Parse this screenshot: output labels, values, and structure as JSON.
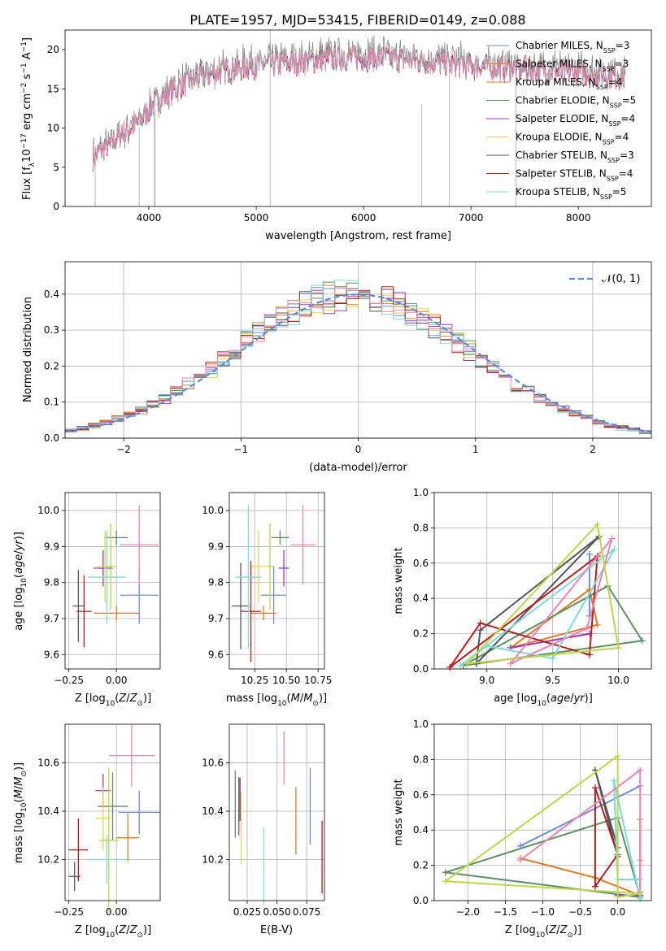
{
  "figure_title": "PLATE=1957, MJD=53415, FIBERID=0149, z=0.088",
  "model_colors": [
    "#6f8fd8",
    "#e07a24",
    "#5e8f62",
    "#9c37b8",
    "#e3d64a",
    "#555555",
    "#b31b1b",
    "#7fdad8",
    "#e884b8",
    "#bcd64a"
  ],
  "chart_data": [
    {
      "type": "line",
      "panel": "spectrum",
      "xlabel": "wavelength [Angstrom, rest frame]",
      "ylabel": "Flux [fλ10⁻¹⁷ erg cm⁻² s⁻¹ A⁻¹]",
      "xlim": [
        3220,
        8680
      ],
      "ylim": [
        0,
        22.5
      ],
      "xticks": [
        "4000",
        "5000",
        "6000",
        "7000",
        "8000"
      ],
      "yticks": [
        "0",
        "5",
        "10",
        "15",
        "20"
      ],
      "grid": false,
      "legend_position": "right",
      "x_range": [
        3480,
        8440
      ],
      "continuum_knots": {
        "x": [
          3480,
          3700,
          3900,
          4050,
          4300,
          4600,
          5000,
          5400,
          5800,
          6200,
          6600,
          7000,
          7500,
          8000,
          8440
        ],
        "y": [
          6.5,
          9,
          11,
          13.5,
          16,
          17.5,
          18.5,
          19,
          19.5,
          19.5,
          19,
          18.5,
          18,
          17.5,
          17
        ]
      },
      "series": [
        {
          "name": "Chabrier MILES, N_SSP=3",
          "color": "#6f8fd8"
        },
        {
          "name": "Salpeter MILES, N_SSP=3",
          "color": "#e07a24"
        },
        {
          "name": "Kroupa MILES, N_SSP=4",
          "color": "#e07a24"
        },
        {
          "name": "Chabrier ELODIE, N_SSP=5",
          "color": "#5e8f62"
        },
        {
          "name": "Salpeter ELODIE, N_SSP=4",
          "color": "#9c37b8"
        },
        {
          "name": "Kroupa ELODIE, N_SSP=4",
          "color": "#e3d64a"
        },
        {
          "name": "Chabrier STELIB, N_SSP=3",
          "color": "#555555"
        },
        {
          "name": "Salpeter STELIB, N_SSP=4",
          "color": "#b31b1b"
        },
        {
          "name": "Kroupa STELIB, N_SSP=5",
          "color": "#7fdad8"
        }
      ],
      "data_series": {
        "name": "",
        "color": "#808080"
      },
      "legend_prefix": [
        "Chabrier MILES, N",
        "Salpeter MILES, N",
        "Kroupa MILES, N",
        "Chabrier ELODIE, N",
        "Salpeter ELODIE, N",
        "Kroupa ELODIE, N",
        "Chabrier STELIB, N",
        "Salpeter STELIB, N",
        "Kroupa STELIB, N"
      ],
      "legend_sub": "SSP",
      "legend_suffix": [
        "=3",
        "=3",
        "=4",
        "=5",
        "=4",
        "=4",
        "=3",
        "=4",
        "=5"
      ]
    },
    {
      "type": "line",
      "panel": "residual_histogram",
      "xlabel": "(data-model)/error",
      "ylabel": "Normed distribution",
      "xlim": [
        -2.5,
        2.5
      ],
      "ylim": [
        0,
        0.49
      ],
      "xticks": [
        "−2",
        "−1",
        "0",
        "1",
        "2"
      ],
      "yticks": [
        "0.0",
        "0.1",
        "0.2",
        "0.3",
        "0.4"
      ],
      "grid": true,
      "bin_width": 0.1,
      "reference_curve": {
        "name": "𝒩(0, 1)",
        "color": "#5b8bd6",
        "style": "dashed",
        "mean": 0,
        "sigma": 1
      },
      "series_colors": [
        "#6f8fd8",
        "#e07a24",
        "#5e8f62",
        "#9c37b8",
        "#e3d64a",
        "#555555",
        "#b31b1b",
        "#7fdad8",
        "#e884b8"
      ]
    },
    {
      "type": "scatter",
      "panel": "age_vs_Z",
      "xlabel": "Z [log10(Z/Z⊙)]",
      "ylabel": "age  [log10(age/yr)]",
      "xlim": [
        -0.27,
        0.23
      ],
      "ylim": [
        9.56,
        10.05
      ],
      "xticks": [
        "−0.25",
        "0.00"
      ],
      "yticks": [
        "9.6",
        "9.7",
        "9.8",
        "9.9",
        "10.0"
      ],
      "grid": true,
      "points": [
        {
          "x": 0.12,
          "y": 9.765,
          "xerr": 0.1,
          "yerr": 0.08,
          "color": "#6f8fd8"
        },
        {
          "x": 0.0,
          "y": 9.715,
          "xerr": 0.12,
          "yerr": 0.02,
          "color": "#e07a24"
        },
        {
          "x": 0.0,
          "y": 9.925,
          "xerr": 0.06,
          "yerr": 0.02,
          "color": "#5e8f62"
        },
        {
          "x": -0.07,
          "y": 9.84,
          "xerr": 0.05,
          "yerr": 0.05,
          "color": "#9c37b8"
        },
        {
          "x": -0.06,
          "y": 9.845,
          "xerr": 0.04,
          "yerr": 0.1,
          "color": "#e3d64a"
        },
        {
          "x": -0.2,
          "y": 9.735,
          "xerr": 0.03,
          "yerr": 0.1,
          "color": "#555555"
        },
        {
          "x": -0.17,
          "y": 9.72,
          "xerr": 0.04,
          "yerr": 0.1,
          "color": "#b31b1b"
        },
        {
          "x": -0.05,
          "y": 9.815,
          "xerr": 0.1,
          "yerr": 0.13,
          "color": "#7fdad8"
        },
        {
          "x": 0.12,
          "y": 9.905,
          "xerr": 0.1,
          "yerr": 0.11,
          "color": "#e884b8"
        },
        {
          "x": -0.03,
          "y": 9.845,
          "xerr": 0.03,
          "yerr": 0.12,
          "color": "#bcd64a"
        }
      ]
    },
    {
      "type": "scatter",
      "panel": "age_vs_mass",
      "xlabel": "mass [log10(M/M⊙)]",
      "ylabel": "",
      "xlim": [
        10.05,
        10.8
      ],
      "ylim": [
        9.56,
        10.05
      ],
      "xticks": [
        "10.25",
        "10.50",
        "10.75"
      ],
      "yticks": [
        "9.6",
        "9.7",
        "9.8",
        "9.9",
        "10.0"
      ],
      "grid": true,
      "points": [
        {
          "x": 10.4,
          "y": 9.765,
          "xerr": 0.1,
          "yerr": 0.08,
          "color": "#6f8fd8"
        },
        {
          "x": 10.32,
          "y": 9.715,
          "xerr": 0.1,
          "yerr": 0.02,
          "color": "#e07a24"
        },
        {
          "x": 10.45,
          "y": 9.925,
          "xerr": 0.07,
          "yerr": 0.02,
          "color": "#5e8f62"
        },
        {
          "x": 10.48,
          "y": 9.84,
          "xerr": 0.04,
          "yerr": 0.05,
          "color": "#9c37b8"
        },
        {
          "x": 10.28,
          "y": 9.845,
          "xerr": 0.06,
          "yerr": 0.1,
          "color": "#e3d64a"
        },
        {
          "x": 10.14,
          "y": 9.735,
          "xerr": 0.07,
          "yerr": 0.12,
          "color": "#555555"
        },
        {
          "x": 10.22,
          "y": 9.72,
          "xerr": 0.08,
          "yerr": 0.14,
          "color": "#b31b1b"
        },
        {
          "x": 10.2,
          "y": 9.815,
          "xerr": 0.1,
          "yerr": 0.2,
          "color": "#7fdad8"
        },
        {
          "x": 10.63,
          "y": 9.905,
          "xerr": 0.1,
          "yerr": 0.11,
          "color": "#e884b8"
        },
        {
          "x": 10.37,
          "y": 9.845,
          "xerr": 0.03,
          "yerr": 0.12,
          "color": "#bcd64a"
        }
      ]
    },
    {
      "type": "line",
      "panel": "mass_weight_vs_age",
      "xlabel": "age  [log10(age/yr)]",
      "ylabel": "mass weight",
      "xlim": [
        8.6,
        10.25
      ],
      "ylim": [
        0,
        1
      ],
      "xticks": [
        "9.0",
        "9.5",
        "10.0"
      ],
      "yticks": [
        "0.0",
        "0.2",
        "0.4",
        "0.6",
        "0.8",
        "1.0"
      ],
      "grid": true,
      "series": [
        {
          "color": "#6f8fd8",
          "x": [
            9.78,
            9.78,
            9.78
          ],
          "y": [
            0.65,
            0.3,
            0.65
          ]
        },
        {
          "color": "#e07a24",
          "x": [
            9.18,
            9.78,
            9.84,
            9.18
          ],
          "y": [
            0.12,
            0.45,
            0.25,
            0.12
          ]
        },
        {
          "color": "#5e8f62",
          "x": [
            8.82,
            9.92,
            10.18,
            8.82
          ],
          "y": [
            0.02,
            0.47,
            0.16,
            0.02
          ]
        },
        {
          "color": "#9c37b8",
          "x": [
            9.18,
            9.78,
            9.18
          ],
          "y": [
            0.12,
            0.2,
            0.12
          ]
        },
        {
          "color": "#555555",
          "x": [
            8.92,
            8.95,
            9.85,
            8.92
          ],
          "y": [
            0.03,
            0.22,
            0.75,
            0.03
          ]
        },
        {
          "color": "#b31b1b",
          "x": [
            8.72,
            8.95,
            9.78,
            9.84,
            8.72
          ],
          "y": [
            0.01,
            0.26,
            0.08,
            0.64,
            0.01
          ]
        },
        {
          "color": "#7fdad8",
          "x": [
            8.8,
            9.0,
            9.5,
            9.97,
            8.8
          ],
          "y": [
            0.02,
            0.13,
            0.06,
            0.68,
            0.02
          ]
        },
        {
          "color": "#e884b8",
          "x": [
            9.18,
            9.76,
            9.95,
            9.18
          ],
          "y": [
            0.03,
            0.23,
            0.74,
            0.03
          ]
        },
        {
          "color": "#bcd64a",
          "x": [
            8.85,
            9.84,
            10.0,
            8.85
          ],
          "y": [
            0.03,
            0.82,
            0.12,
            0.03
          ]
        }
      ]
    },
    {
      "type": "scatter",
      "panel": "mass_vs_Z",
      "xlabel": "Z [log10(Z/Z⊙)]",
      "ylabel": "mass [log10(M/M⊙)]",
      "xlim": [
        -0.27,
        0.23
      ],
      "ylim": [
        10.03,
        10.76
      ],
      "xticks": [
        "−0.25",
        "0.00"
      ],
      "yticks": [
        "10.2",
        "10.4",
        "10.6"
      ],
      "grid": true,
      "points": [
        {
          "x": 0.12,
          "y": 10.395,
          "xerr": 0.11,
          "yerr": 0.09,
          "color": "#6f8fd8"
        },
        {
          "x": 0.06,
          "y": 10.29,
          "xerr": 0.06,
          "yerr": 0.1,
          "color": "#e07a24"
        },
        {
          "x": -0.02,
          "y": 10.42,
          "xerr": 0.08,
          "yerr": 0.14,
          "color": "#5e8f62"
        },
        {
          "x": -0.07,
          "y": 10.485,
          "xerr": 0.04,
          "yerr": 0.07,
          "color": "#9c37b8"
        },
        {
          "x": -0.07,
          "y": 10.37,
          "xerr": 0.04,
          "yerr": 0.13,
          "color": "#e3d64a"
        },
        {
          "x": -0.22,
          "y": 10.13,
          "xerr": 0.03,
          "yerr": 0.06,
          "color": "#555555"
        },
        {
          "x": -0.2,
          "y": 10.24,
          "xerr": 0.05,
          "yerr": 0.13,
          "color": "#b31b1b"
        },
        {
          "x": -0.05,
          "y": 10.2,
          "xerr": 0.1,
          "yerr": 0.1,
          "color": "#7fdad8"
        },
        {
          "x": 0.08,
          "y": 10.63,
          "xerr": 0.12,
          "yerr": 0.13,
          "color": "#e884b8"
        },
        {
          "x": -0.04,
          "y": 10.28,
          "xerr": 0.05,
          "yerr": 0.3,
          "color": "#bcd64a"
        }
      ]
    },
    {
      "type": "scatter",
      "panel": "mass_vs_EBV",
      "xlabel": "E(B-V)",
      "ylabel": "",
      "xlim": [
        0.01,
        0.09
      ],
      "ylim": [
        10.03,
        10.76
      ],
      "xticks": [
        "0.025",
        "0.050",
        "0.075"
      ],
      "yticks": [
        "10.2",
        "10.4",
        "10.6"
      ],
      "grid": true,
      "points": [
        {
          "x": 0.078,
          "y": 10.42,
          "yerr": 0.16,
          "color": "#6f8fd8"
        },
        {
          "x": 0.066,
          "y": 10.36,
          "yerr": 0.14,
          "color": "#e07a24"
        },
        {
          "x": 0.015,
          "y": 10.43,
          "yerr": 0.14,
          "color": "#5e8f62"
        },
        {
          "x": 0.018,
          "y": 10.42,
          "yerr": 0.12,
          "color": "#9c37b8"
        },
        {
          "x": 0.02,
          "y": 10.33,
          "yerr": 0.15,
          "color": "#e3d64a"
        },
        {
          "x": 0.019,
          "y": 10.45,
          "yerr": 0.09,
          "color": "#555555"
        },
        {
          "x": 0.088,
          "y": 10.21,
          "yerr": 0.15,
          "color": "#b31b1b"
        },
        {
          "x": 0.039,
          "y": 10.17,
          "yerr": 0.16,
          "color": "#7fdad8"
        },
        {
          "x": 0.056,
          "y": 10.62,
          "yerr": 0.11,
          "color": "#e884b8"
        }
      ]
    },
    {
      "type": "line",
      "panel": "mass_weight_vs_Z",
      "xlabel": "Z [log10(Z/Z⊙)]",
      "ylabel": "mass weight",
      "xlim": [
        -2.45,
        0.45
      ],
      "ylim": [
        0,
        1
      ],
      "xticks": [
        "−2.0",
        "−1.5",
        "−1.0",
        "−0.5",
        "0.0"
      ],
      "yticks": [
        "0.0",
        "0.2",
        "0.4",
        "0.6",
        "0.8",
        "1.0"
      ],
      "grid": true,
      "series": [
        {
          "color": "#6f8fd8",
          "x": [
            -1.3,
            0.3,
            -1.3
          ],
          "y": [
            0.31,
            0.65,
            0.31
          ]
        },
        {
          "color": "#e07a24",
          "x": [
            -1.3,
            -0.3,
            0.3,
            0.3
          ],
          "y": [
            0.24,
            0.13,
            0.03,
            0.46
          ]
        },
        {
          "color": "#5e8f62",
          "x": [
            -2.3,
            0.0,
            0.3,
            -2.3
          ],
          "y": [
            0.16,
            0.47,
            0.02,
            0.16
          ]
        },
        {
          "color": "#9c37b8",
          "x": [
            0.0,
            0.3
          ],
          "y": [
            0.03,
            0.03
          ]
        },
        {
          "color": "#555555",
          "x": [
            -0.3,
            0.0,
            0.0,
            -0.3
          ],
          "y": [
            0.74,
            0.25,
            0.3,
            0.74
          ]
        },
        {
          "color": "#b31b1b",
          "x": [
            -0.3,
            0.0,
            -0.3,
            -0.3
          ],
          "y": [
            0.08,
            0.26,
            0.64,
            0.08
          ]
        },
        {
          "color": "#7fdad8",
          "x": [
            -0.05,
            0.0,
            0.3,
            0.3,
            -0.05
          ],
          "y": [
            0.68,
            0.12,
            0.12,
            0.01,
            0.68
          ]
        },
        {
          "color": "#e884b8",
          "x": [
            -1.3,
            0.3,
            0.3,
            0.3
          ],
          "y": [
            0.23,
            0.74,
            0.05,
            0.23
          ]
        },
        {
          "color": "#bcd64a",
          "x": [
            -2.3,
            0.0,
            0.0,
            0.3,
            -2.3
          ],
          "y": [
            0.11,
            0.82,
            0.02,
            0.04,
            0.11
          ]
        }
      ]
    }
  ]
}
